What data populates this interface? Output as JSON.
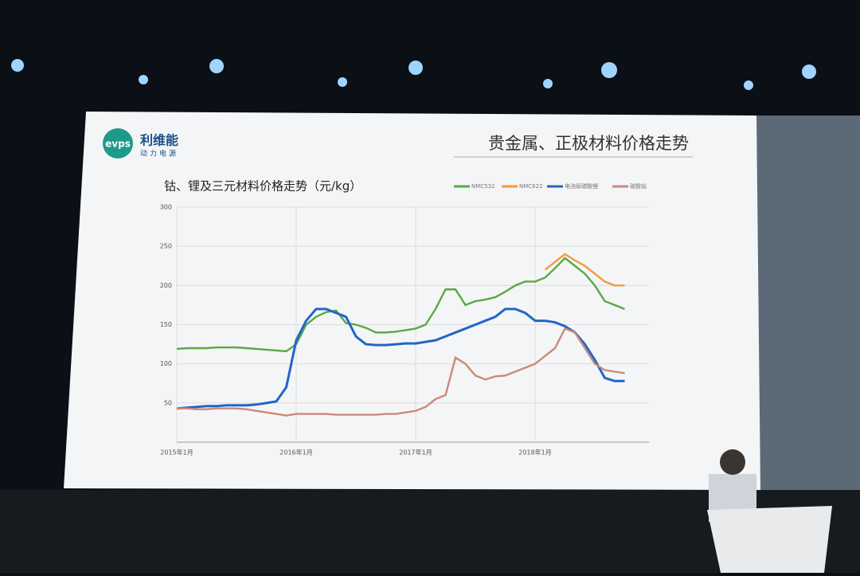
{
  "slide": {
    "title": "贵金属、正极材料价格走势",
    "logo": "evps",
    "brand": "利维能",
    "brand_sub": "动力电源"
  },
  "chart_data": {
    "type": "line",
    "title": "钴、锂及三元材料价格走势（元/kg）",
    "categories": [
      "2015年1月",
      null,
      null,
      null,
      null,
      null,
      null,
      null,
      null,
      null,
      null,
      null,
      "2016年1月",
      null,
      null,
      null,
      null,
      null,
      null,
      null,
      null,
      null,
      null,
      null,
      "2017年1月",
      null,
      null,
      null,
      null,
      null,
      null,
      null,
      null,
      null,
      null,
      null,
      "2018年1月",
      null,
      null,
      null,
      null,
      null,
      null,
      null,
      null,
      null
    ],
    "series": [
      {
        "name": "NMC532",
        "color": "#5aa845",
        "values": [
          119,
          120,
          120,
          120,
          121,
          121,
          121,
          120,
          119,
          118,
          117,
          116,
          125,
          150,
          160,
          166,
          168,
          152,
          150,
          146,
          140,
          140,
          141,
          143,
          145,
          150,
          170,
          195,
          195,
          175,
          180,
          182,
          185,
          192,
          200,
          205,
          205,
          210,
          222,
          235,
          225,
          215,
          200,
          180,
          175,
          170
        ]
      },
      {
        "name": "NMC622",
        "color": "#f39a3b",
        "values": [
          null,
          null,
          null,
          null,
          null,
          null,
          null,
          null,
          null,
          null,
          null,
          null,
          null,
          null,
          null,
          null,
          null,
          null,
          null,
          null,
          null,
          null,
          null,
          null,
          null,
          null,
          null,
          null,
          null,
          null,
          null,
          null,
          null,
          null,
          null,
          null,
          null,
          220,
          230,
          240,
          232,
          225,
          215,
          205,
          200,
          200
        ]
      },
      {
        "name": "电池级碳酸锂",
        "color": "#2166c8",
        "values": [
          43,
          44,
          45,
          46,
          46,
          47,
          47,
          47,
          48,
          50,
          52,
          70,
          130,
          155,
          170,
          170,
          165,
          160,
          135,
          125,
          124,
          124,
          125,
          126,
          126,
          128,
          130,
          135,
          140,
          145,
          150,
          155,
          160,
          170,
          170,
          165,
          155,
          155,
          153,
          148,
          140,
          125,
          105,
          82,
          78,
          78
        ]
      },
      {
        "name": "硫酸钴",
        "color": "#c98a7a",
        "values": [
          43,
          43,
          42,
          42,
          43,
          43,
          43,
          42,
          40,
          38,
          36,
          34,
          36,
          36,
          36,
          36,
          35,
          35,
          35,
          35,
          35,
          36,
          36,
          38,
          40,
          45,
          55,
          60,
          108,
          100,
          85,
          80,
          84,
          85,
          90,
          95,
          100,
          110,
          120,
          145,
          140,
          120,
          100,
          92,
          90,
          88
        ]
      }
    ],
    "ylim": [
      0,
      300
    ],
    "yticks": [
      50,
      100,
      150,
      200,
      250,
      300
    ],
    "grid": true,
    "legend": "top-right"
  }
}
